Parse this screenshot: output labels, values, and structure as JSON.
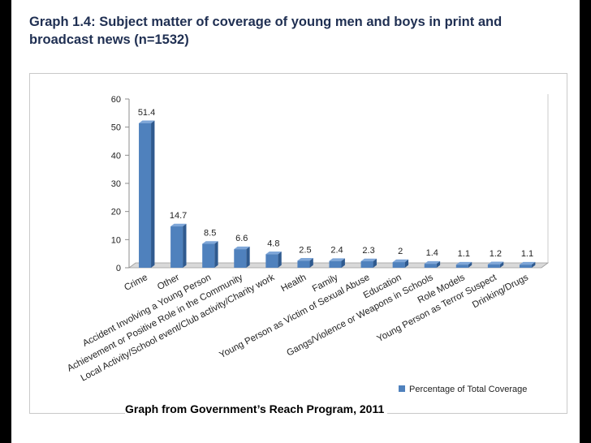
{
  "page": {
    "title": "Graph 1.4: Subject matter of coverage of young men and boys in print and broadcast news (n=1532)",
    "caption": "Graph from Government’s Reach Program, 2011"
  },
  "chart_data": {
    "type": "bar",
    "title": "",
    "xlabel": "",
    "ylabel": "",
    "ylim": [
      0,
      60
    ],
    "yticks": [
      0,
      10,
      20,
      30,
      40,
      50,
      60
    ],
    "grid": false,
    "legend": "bottom-right",
    "bar_color": "#4f81bd",
    "categories": [
      "Crime",
      "Other",
      "Accident Involving a Young Person",
      "Achievement or Positive Role in the Community",
      "Local Activity/School event/Club activity/Charity work",
      "Health",
      "Family",
      "Young Person as Victim of Sexual Abuse",
      "Education",
      "Gangs/Violence or Weapons in Schools",
      "Role Models",
      "Young Person as Terror Suspect",
      "Drinking/Drugs"
    ],
    "series": [
      {
        "name": "Percentage of Total Coverage",
        "values": [
          51.4,
          14.7,
          8.5,
          6.6,
          4.8,
          2.5,
          2.4,
          2.3,
          2,
          1.4,
          1.1,
          1.2,
          1.1
        ]
      }
    ]
  }
}
